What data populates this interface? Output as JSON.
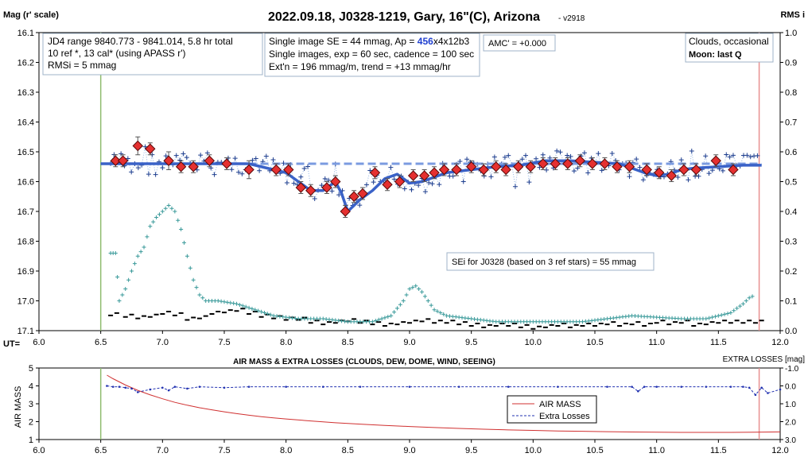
{
  "chart_data": [
    {
      "type": "scatter",
      "title": "2022.09.18, J0328-1219, Gary, 16\"(C), Arizona",
      "version": "- v2918",
      "ylabel_left": "Mag (r' scale)",
      "ylabel_right": "RMS i",
      "xlabel": "UT=",
      "xlim": [
        6.0,
        12.0
      ],
      "ylim_left": [
        16.1,
        17.1
      ],
      "ylim_right": [
        0.0,
        1.0
      ],
      "x_ticks": [
        "6.0",
        "6.5",
        "7.0",
        "7.5",
        "8.0",
        "8.5",
        "9.0",
        "9.5",
        "10.0",
        "10.5",
        "11.0",
        "11.5",
        "12.0"
      ],
      "y_ticks_left": [
        "16.1",
        "16.2",
        "16.3",
        "16.4",
        "16.5",
        "16.6",
        "16.7",
        "16.8",
        "16.9",
        "17.0",
        "17.1"
      ],
      "y_ticks_right": [
        "1.0",
        "0.9",
        "0.8",
        "0.7",
        "0.6",
        "0.5",
        "0.4",
        "0.3",
        "0.2",
        "0.1",
        "0.0"
      ],
      "grid": false,
      "info_box_1": [
        "JD4 range 9840.773 - 9841.014, 5.8 hr total",
        "10 ref *, 13 cal*  (using APASS r')",
        "RMSi = 5 mmag"
      ],
      "info_box_2_line1_prefix": "Single image SE = 44 mmag, Ap = ",
      "info_box_2_ap_value": "456",
      "info_box_2_line1_suffix": "x4x12b3",
      "info_box_2_lines": [
        "Single images, exp = 60 sec, cadence = 100 sec",
        "Ext'n = 196 mmag/m, trend = +13 mmag/hr"
      ],
      "amc_label": "AMC' = +0.000",
      "weather_line": "Clouds, occasional",
      "moon_line": "Moon: last Q",
      "sei_label": "SEi for J0328 (based on 3 ref stars) = 55 mmag",
      "vertical_lines": [
        {
          "x": 6.5,
          "color": "#8fbc6f"
        },
        {
          "x": 11.83,
          "color": "#e89090"
        }
      ],
      "trend_dashed": {
        "x": [
          7.6,
          11.85
        ],
        "y": [
          16.54,
          16.54
        ],
        "color": "#7b9be0"
      },
      "model_curve": {
        "color": "#3a62c8",
        "x": [
          6.5,
          7.0,
          7.5,
          7.7,
          7.8,
          7.9,
          8.0,
          8.1,
          8.2,
          8.3,
          8.4,
          8.45,
          8.5,
          8.55,
          8.6,
          8.7,
          8.8,
          8.9,
          9.0,
          9.1,
          9.2,
          9.3,
          9.5,
          9.7,
          9.9,
          10.1,
          10.3,
          10.5,
          10.7,
          10.8,
          10.9,
          11.0,
          11.1,
          11.2,
          11.3,
          11.5,
          11.7,
          11.85
        ],
        "y": [
          16.54,
          16.54,
          16.54,
          16.54,
          16.55,
          16.56,
          16.57,
          16.6,
          16.63,
          16.63,
          16.6,
          16.64,
          16.7,
          16.68,
          16.66,
          16.63,
          16.59,
          16.575,
          16.605,
          16.6,
          16.585,
          16.57,
          16.56,
          16.55,
          16.545,
          16.53,
          16.53,
          16.535,
          16.54,
          16.555,
          16.57,
          16.58,
          16.575,
          16.56,
          16.555,
          16.55,
          16.545,
          16.545
        ]
      },
      "binned_points": {
        "marker": "diamond",
        "color": "#e53030",
        "x": [
          6.62,
          6.68,
          6.8,
          6.9,
          7.05,
          7.15,
          7.25,
          7.38,
          7.52,
          7.7,
          7.92,
          8.02,
          8.12,
          8.2,
          8.33,
          8.4,
          8.48,
          8.55,
          8.62,
          8.72,
          8.82,
          8.92,
          9.03,
          9.12,
          9.2,
          9.28,
          9.38,
          9.5,
          9.6,
          9.7,
          9.78,
          9.88,
          9.98,
          10.08,
          10.18,
          10.28,
          10.38,
          10.48,
          10.58,
          10.68,
          10.78,
          10.92,
          11.02,
          11.12,
          11.22,
          11.32,
          11.48,
          11.62
        ],
        "y": [
          16.53,
          16.53,
          16.48,
          16.49,
          16.53,
          16.55,
          16.55,
          16.53,
          16.54,
          16.56,
          16.56,
          16.56,
          16.62,
          16.63,
          16.62,
          16.6,
          16.7,
          16.65,
          16.64,
          16.57,
          16.61,
          16.6,
          16.58,
          16.58,
          16.57,
          16.56,
          16.56,
          16.55,
          16.56,
          16.55,
          16.56,
          16.55,
          16.55,
          16.54,
          16.54,
          16.54,
          16.53,
          16.54,
          16.54,
          16.55,
          16.55,
          16.56,
          16.57,
          16.58,
          16.56,
          16.56,
          16.53,
          16.56
        ],
        "err": [
          0.02,
          0.02,
          0.03,
          0.02,
          0.03,
          0.02,
          0.02,
          0.02,
          0.02,
          0.03,
          0.02,
          0.02,
          0.02,
          0.02,
          0.02,
          0.02,
          0.02,
          0.02,
          0.02,
          0.02,
          0.02,
          0.02,
          0.02,
          0.02,
          0.02,
          0.02,
          0.02,
          0.02,
          0.02,
          0.02,
          0.02,
          0.02,
          0.02,
          0.02,
          0.02,
          0.02,
          0.02,
          0.02,
          0.02,
          0.02,
          0.02,
          0.02,
          0.02,
          0.02,
          0.02,
          0.02,
          0.02,
          0.02
        ]
      },
      "single_images": {
        "marker": "plus",
        "color": "#1f3f8f",
        "x_range": [
          6.58,
          11.82
        ],
        "y_center": 16.56,
        "scatter_mag": 0.04
      },
      "rms_series": {
        "marker": "plus",
        "color": "#3a9a9a",
        "axis": "right",
        "x": [
          6.58,
          6.62,
          6.65,
          6.7,
          6.75,
          6.8,
          6.85,
          6.9,
          6.95,
          7.0,
          7.05,
          7.1,
          7.15,
          7.2,
          7.25,
          7.3,
          7.35,
          7.45,
          7.6,
          7.75,
          7.9,
          8.1,
          8.3,
          8.5,
          8.7,
          8.85,
          8.95,
          9.0,
          9.05,
          9.1,
          9.2,
          9.3,
          9.5,
          9.7,
          10.0,
          10.4,
          10.8,
          11.2,
          11.4,
          11.6,
          11.7,
          11.75,
          11.8
        ],
        "y": [
          0.26,
          0.26,
          0.1,
          0.14,
          0.2,
          0.25,
          0.28,
          0.35,
          0.38,
          0.4,
          0.42,
          0.4,
          0.34,
          0.25,
          0.17,
          0.12,
          0.1,
          0.1,
          0.09,
          0.07,
          0.05,
          0.04,
          0.04,
          0.03,
          0.03,
          0.05,
          0.1,
          0.14,
          0.15,
          0.13,
          0.07,
          0.05,
          0.04,
          0.03,
          0.03,
          0.03,
          0.05,
          0.04,
          0.04,
          0.06,
          0.09,
          0.11,
          0.12
        ]
      },
      "black_series": {
        "marker": "dash",
        "color": "#000000",
        "axis": "right",
        "x": [
          6.58,
          6.7,
          6.8,
          6.9,
          7.0,
          7.1,
          7.2,
          7.3,
          7.4,
          7.5,
          7.6,
          7.7,
          7.8,
          7.9,
          8.0,
          8.1,
          8.2,
          8.3,
          8.4,
          8.5,
          8.6,
          8.7,
          8.8,
          8.9,
          9.0,
          9.1,
          9.2,
          9.3,
          9.4,
          9.5,
          9.6,
          9.7,
          9.8,
          9.9,
          10.0,
          10.1,
          10.2,
          10.3,
          10.4,
          10.5,
          10.6,
          10.7,
          10.8,
          10.9,
          11.0,
          11.1,
          11.2,
          11.3,
          11.4,
          11.5,
          11.6,
          11.7,
          11.8
        ],
        "y": [
          0.055,
          0.05,
          0.045,
          0.05,
          0.06,
          0.055,
          0.04,
          0.045,
          0.06,
          0.065,
          0.07,
          0.06,
          0.05,
          0.045,
          0.04,
          0.04,
          0.03,
          0.025,
          0.03,
          0.035,
          0.03,
          0.025,
          0.02,
          0.025,
          0.03,
          0.035,
          0.03,
          0.03,
          0.025,
          0.02,
          0.015,
          0.02,
          0.02,
          0.015,
          0.01,
          0.015,
          0.02,
          0.015,
          0.02,
          0.02,
          0.025,
          0.02,
          0.025,
          0.02,
          0.03,
          0.025,
          0.03,
          0.02,
          0.025,
          0.03,
          0.03,
          0.03,
          0.03
        ]
      }
    },
    {
      "type": "line",
      "title": "AIR MASS & EXTRA LOSSES (CLOUDS, DEW, DOME, WIND, SEEING)",
      "right_axis_title": "EXTRA LOSSES [mag]",
      "ylabel_left": "AIR MASS",
      "xlim": [
        6.0,
        12.0
      ],
      "ylim_left": [
        1,
        5
      ],
      "ylim_right": [
        -1.0,
        3.0
      ],
      "x_ticks": [
        "6.0",
        "6.5",
        "7.0",
        "7.5",
        "8.0",
        "8.5",
        "9.0",
        "9.5",
        "10.0",
        "10.5",
        "11.0",
        "11.5",
        "12.0"
      ],
      "y_ticks_left": [
        "5",
        "4",
        "3",
        "2",
        "1"
      ],
      "y_ticks_right": [
        "-1.0",
        "0.0",
        "1.0",
        "2.0",
        "3.0"
      ],
      "legend": [
        "AIR MASS",
        "Extra Losses"
      ],
      "vertical_lines": [
        {
          "x": 6.5,
          "color": "#8fbc6f"
        },
        {
          "x": 11.83,
          "color": "#e89090"
        }
      ],
      "series": [
        {
          "name": "AIR MASS",
          "color": "#d03030",
          "x": [
            6.55,
            6.6,
            6.7,
            6.8,
            6.9,
            7.0,
            7.1,
            7.2,
            7.3,
            7.4,
            7.5,
            7.6,
            7.7,
            7.8,
            7.9,
            8.0,
            8.2,
            8.4,
            8.6,
            8.8,
            9.0,
            9.2,
            9.4,
            9.6,
            9.8,
            10.0,
            10.2,
            10.4,
            10.6,
            10.8,
            11.0,
            11.2,
            11.4,
            11.6,
            11.8,
            12.0
          ],
          "y": [
            4.6,
            4.4,
            4.05,
            3.75,
            3.5,
            3.28,
            3.08,
            2.92,
            2.78,
            2.66,
            2.55,
            2.45,
            2.36,
            2.28,
            2.21,
            2.15,
            2.04,
            1.94,
            1.86,
            1.79,
            1.73,
            1.67,
            1.62,
            1.58,
            1.54,
            1.51,
            1.48,
            1.46,
            1.44,
            1.42,
            1.41,
            1.4,
            1.4,
            1.4,
            1.41,
            1.43
          ]
        },
        {
          "name": "Extra Losses",
          "color": "#2030b0",
          "axis": "right",
          "x": [
            6.55,
            6.6,
            6.65,
            6.7,
            6.75,
            6.8,
            6.9,
            7.0,
            7.05,
            7.1,
            7.2,
            7.3,
            7.5,
            7.7,
            8.0,
            8.3,
            8.6,
            9.0,
            9.4,
            9.8,
            10.2,
            10.6,
            10.8,
            10.85,
            10.9,
            11.0,
            11.2,
            11.4,
            11.6,
            11.7,
            11.75,
            11.8,
            11.85,
            11.9,
            12.0
          ],
          "y": [
            0.0,
            0.05,
            0.05,
            0.1,
            0.15,
            0.35,
            0.2,
            0.1,
            0.25,
            0.05,
            0.15,
            0.05,
            0.1,
            0.05,
            0.05,
            0.05,
            0.05,
            0.05,
            0.05,
            0.05,
            0.05,
            0.05,
            0.05,
            0.3,
            0.05,
            0.05,
            0.05,
            0.05,
            0.05,
            0.05,
            0.1,
            0.5,
            0.1,
            0.4,
            0.2
          ]
        }
      ]
    }
  ]
}
